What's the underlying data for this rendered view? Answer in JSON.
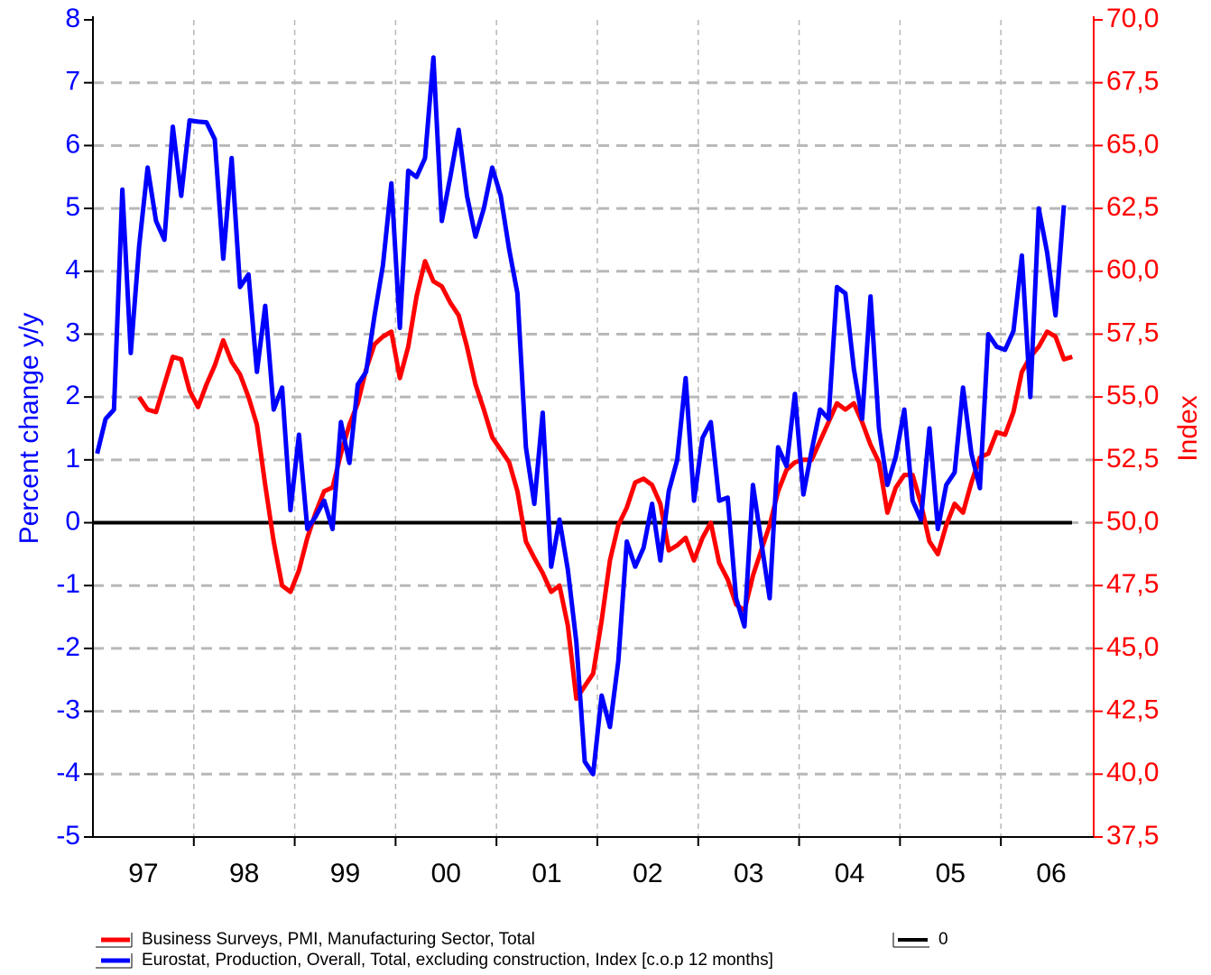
{
  "chart_data": {
    "type": "line",
    "ylabel": "Percent change y/y",
    "y2label": "Index",
    "xlim": [
      1997.0,
      2006.92
    ],
    "xgrid": [
      1998,
      1999,
      2000,
      2001,
      2002,
      2003,
      2004,
      2005,
      2006
    ],
    "xticks": [
      {
        "value": 1997.5,
        "label": "97"
      },
      {
        "value": 1998.5,
        "label": "98"
      },
      {
        "value": 1999.5,
        "label": "99"
      },
      {
        "value": 2000.5,
        "label": "00"
      },
      {
        "value": 2001.5,
        "label": "01"
      },
      {
        "value": 2002.5,
        "label": "02"
      },
      {
        "value": 2003.5,
        "label": "03"
      },
      {
        "value": 2004.5,
        "label": "04"
      },
      {
        "value": 2005.5,
        "label": "05"
      },
      {
        "value": 2006.5,
        "label": "06"
      }
    ],
    "ylim": [
      -5,
      8
    ],
    "yticks": [
      -5,
      -4,
      -3,
      -2,
      -1,
      0,
      1,
      2,
      3,
      4,
      5,
      6,
      7,
      8
    ],
    "y2lim": [
      37.5,
      70
    ],
    "y2ticks": [
      {
        "value": 37.5,
        "label": "37,5"
      },
      {
        "value": 40,
        "label": "40,0"
      },
      {
        "value": 42.5,
        "label": "42,5"
      },
      {
        "value": 45,
        "label": "45,0"
      },
      {
        "value": 47.5,
        "label": "47,5"
      },
      {
        "value": 50,
        "label": "50,0"
      },
      {
        "value": 52.5,
        "label": "52,5"
      },
      {
        "value": 55,
        "label": "55,0"
      },
      {
        "value": 57.5,
        "label": "57,5"
      },
      {
        "value": 60,
        "label": "60,0"
      },
      {
        "value": 62.5,
        "label": "62,5"
      },
      {
        "value": 65,
        "label": "65,0"
      },
      {
        "value": 67.5,
        "label": "67,5"
      },
      {
        "value": 70,
        "label": "70,0"
      }
    ],
    "grid": true,
    "reference_line": {
      "name": "0",
      "value": 0,
      "color": "#000000"
    },
    "series": [
      {
        "name": "Business Surveys, PMI, Manufacturing Sector, Total",
        "color": "#ff0000",
        "axis": "y2",
        "x": [
          1997.458,
          1997.542,
          1997.625,
          1997.708,
          1997.792,
          1997.875,
          1997.958,
          1998.042,
          1998.125,
          1998.208,
          1998.292,
          1998.375,
          1998.458,
          1998.542,
          1998.625,
          1998.708,
          1998.792,
          1998.875,
          1998.958,
          1999.042,
          1999.125,
          1999.208,
          1999.292,
          1999.375,
          1999.458,
          1999.542,
          1999.625,
          1999.708,
          1999.792,
          1999.875,
          1999.958,
          2000.042,
          2000.125,
          2000.208,
          2000.292,
          2000.375,
          2000.458,
          2000.542,
          2000.625,
          2000.708,
          2000.792,
          2000.875,
          2000.958,
          2001.042,
          2001.125,
          2001.208,
          2001.292,
          2001.375,
          2001.458,
          2001.542,
          2001.625,
          2001.708,
          2001.792,
          2001.875,
          2001.958,
          2002.042,
          2002.125,
          2002.208,
          2002.292,
          2002.375,
          2002.458,
          2002.542,
          2002.625,
          2002.708,
          2002.792,
          2002.875,
          2002.958,
          2003.042,
          2003.125,
          2003.208,
          2003.292,
          2003.375,
          2003.458,
          2003.542,
          2003.625,
          2003.708,
          2003.792,
          2003.875,
          2003.958,
          2004.042,
          2004.125,
          2004.208,
          2004.292,
          2004.375,
          2004.458,
          2004.542,
          2004.625,
          2004.708,
          2004.792,
          2004.875,
          2004.958,
          2005.042,
          2005.125,
          2005.208,
          2005.292,
          2005.375,
          2005.458,
          2005.542,
          2005.625,
          2005.708,
          2005.792,
          2005.875,
          2005.958,
          2006.042,
          2006.125,
          2006.208,
          2006.292,
          2006.375,
          2006.458,
          2006.542,
          2006.625,
          2006.708
        ],
        "values": [
          55.0,
          54.5,
          54.4,
          55.5,
          56.6,
          56.5,
          55.25,
          54.6,
          55.5,
          56.25,
          57.25,
          56.4,
          55.9,
          55.0,
          53.9,
          51.5,
          49.25,
          47.5,
          47.25,
          48.1,
          49.4,
          50.4,
          51.25,
          51.4,
          52.75,
          53.9,
          54.75,
          56.1,
          57.1,
          57.4,
          57.6,
          55.75,
          57.0,
          59.0,
          60.4,
          59.6,
          59.4,
          58.75,
          58.25,
          57.0,
          55.5,
          54.5,
          53.4,
          52.9,
          52.4,
          51.25,
          49.25,
          48.6,
          48.0,
          47.25,
          47.5,
          45.9,
          43.0,
          43.5,
          44.0,
          46.1,
          48.5,
          49.9,
          50.6,
          51.6,
          51.75,
          51.5,
          50.75,
          48.9,
          49.1,
          49.4,
          48.5,
          49.4,
          50.0,
          48.4,
          47.75,
          46.75,
          46.5,
          47.9,
          48.9,
          49.9,
          51.25,
          52.1,
          52.4,
          52.5,
          52.5,
          53.25,
          54.0,
          54.75,
          54.5,
          54.75,
          54.0,
          53.1,
          52.4,
          50.4,
          51.4,
          51.9,
          51.9,
          50.75,
          49.25,
          48.75,
          49.9,
          50.75,
          50.4,
          51.6,
          52.6,
          52.75,
          53.6,
          53.5,
          54.4,
          56.0,
          56.6,
          57.0,
          57.6,
          57.4,
          56.5,
          56.6
        ]
      },
      {
        "name": "Eurostat, Production, Overall, Total, excluding construction, Index [c.o.p 12 months]",
        "color": "#0000ff",
        "axis": "y",
        "x": [
          1997.042,
          1997.125,
          1997.208,
          1997.292,
          1997.375,
          1997.458,
          1997.542,
          1997.625,
          1997.708,
          1997.792,
          1997.875,
          1997.958,
          1998.042,
          1998.125,
          1998.208,
          1998.292,
          1998.375,
          1998.458,
          1998.542,
          1998.625,
          1998.708,
          1998.792,
          1998.875,
          1998.958,
          1999.042,
          1999.125,
          1999.208,
          1999.292,
          1999.375,
          1999.458,
          1999.542,
          1999.625,
          1999.708,
          1999.792,
          1999.875,
          1999.958,
          2000.042,
          2000.125,
          2000.208,
          2000.292,
          2000.375,
          2000.458,
          2000.542,
          2000.625,
          2000.708,
          2000.792,
          2000.875,
          2000.958,
          2001.042,
          2001.125,
          2001.208,
          2001.292,
          2001.375,
          2001.458,
          2001.542,
          2001.625,
          2001.708,
          2001.792,
          2001.875,
          2001.958,
          2002.042,
          2002.125,
          2002.208,
          2002.292,
          2002.375,
          2002.458,
          2002.542,
          2002.625,
          2002.708,
          2002.792,
          2002.875,
          2002.958,
          2003.042,
          2003.125,
          2003.208,
          2003.292,
          2003.375,
          2003.458,
          2003.542,
          2003.625,
          2003.708,
          2003.792,
          2003.875,
          2003.958,
          2004.042,
          2004.125,
          2004.208,
          2004.292,
          2004.375,
          2004.458,
          2004.542,
          2004.625,
          2004.708,
          2004.792,
          2004.875,
          2004.958,
          2005.042,
          2005.125,
          2005.208,
          2005.292,
          2005.375,
          2005.458,
          2005.542,
          2005.625,
          2005.708,
          2005.792,
          2005.875,
          2005.958,
          2006.042,
          2006.125,
          2006.208,
          2006.292,
          2006.375,
          2006.458,
          2006.542,
          2006.625
        ],
        "values": [
          1.1,
          1.65,
          1.8,
          5.3,
          2.7,
          4.4,
          5.65,
          4.8,
          4.5,
          6.3,
          5.2,
          6.4,
          6.38,
          6.37,
          6.1,
          4.2,
          5.8,
          3.75,
          3.95,
          2.4,
          3.45,
          1.8,
          2.15,
          0.2,
          1.4,
          -0.1,
          0.1,
          0.35,
          -0.1,
          1.6,
          0.95,
          2.2,
          2.4,
          3.3,
          4.1,
          5.4,
          3.1,
          5.6,
          5.5,
          5.8,
          7.4,
          4.8,
          5.5,
          6.25,
          5.2,
          4.55,
          5.0,
          5.65,
          5.2,
          4.35,
          3.65,
          1.2,
          0.3,
          1.75,
          -0.7,
          0.05,
          -0.75,
          -1.9,
          -3.8,
          -4.0,
          -2.75,
          -3.25,
          -2.2,
          -0.3,
          -0.7,
          -0.4,
          0.3,
          -0.6,
          0.5,
          1.0,
          2.3,
          0.35,
          1.35,
          1.6,
          0.35,
          0.4,
          -1.2,
          -1.65,
          0.6,
          -0.3,
          -1.2,
          1.2,
          0.9,
          2.05,
          0.45,
          1.15,
          1.8,
          1.65,
          3.75,
          3.65,
          2.45,
          1.65,
          3.6,
          1.5,
          0.6,
          1.05,
          1.8,
          0.35,
          0.05,
          1.5,
          -0.1,
          0.6,
          0.8,
          2.15,
          1.1,
          0.55,
          3.0,
          2.8,
          2.75,
          3.05,
          4.25,
          2.0,
          5.0,
          4.3,
          3.3,
          5.05
        ]
      }
    ]
  }
}
